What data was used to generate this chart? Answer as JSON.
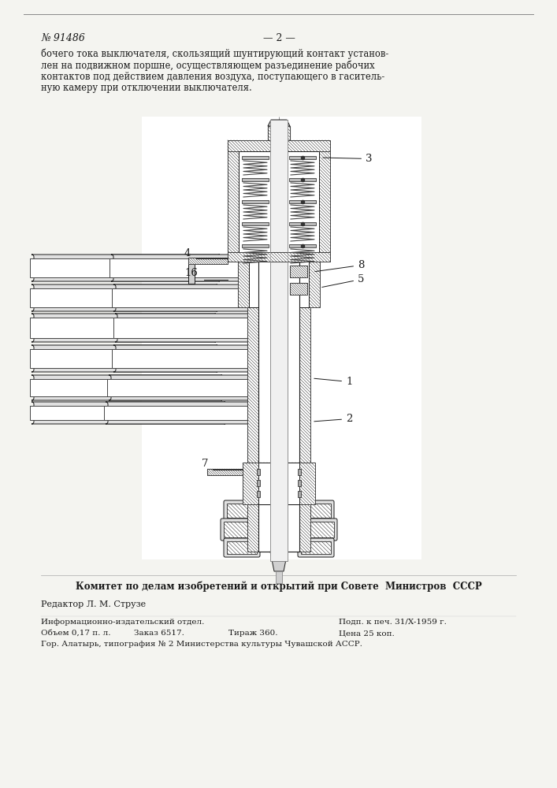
{
  "page_number": "№ 91486",
  "page_dash": "— 2 —",
  "body_text_lines": [
    "бочего тока выключателя, скользящий шунтирующий контакт установ-",
    "лен на подвижном поршне, осуществляющем разъединение рабочих",
    "контактов под действием давления воздуха, поступающего в гаситель-",
    "ную камеру при отключении выключателя."
  ],
  "footer_bold": "Комитет по делам изобретений и открытий при Совете  Министров  СССР",
  "editor_line": "Редактор Л. М. Струзе",
  "info_left1": "Информационно-издательский отдел.",
  "info_right1": "Подп. к печ. 31/X-1959 г.",
  "info_left2a": "Объем 0,17 п. л.",
  "info_left2b": "Заказ 6517.",
  "info_left2c": "Тираж 360.",
  "info_right2": "Цена 25 коп.",
  "print_line": "Гор. Алатырь, типография № 2 Министерства культуры Чувашской АССР.",
  "bg_color": "#f4f4f0",
  "text_color": "#1a1a1a",
  "hatch_color": "#555555",
  "fig_width": 7.07,
  "fig_height": 10.0,
  "dpi": 100
}
